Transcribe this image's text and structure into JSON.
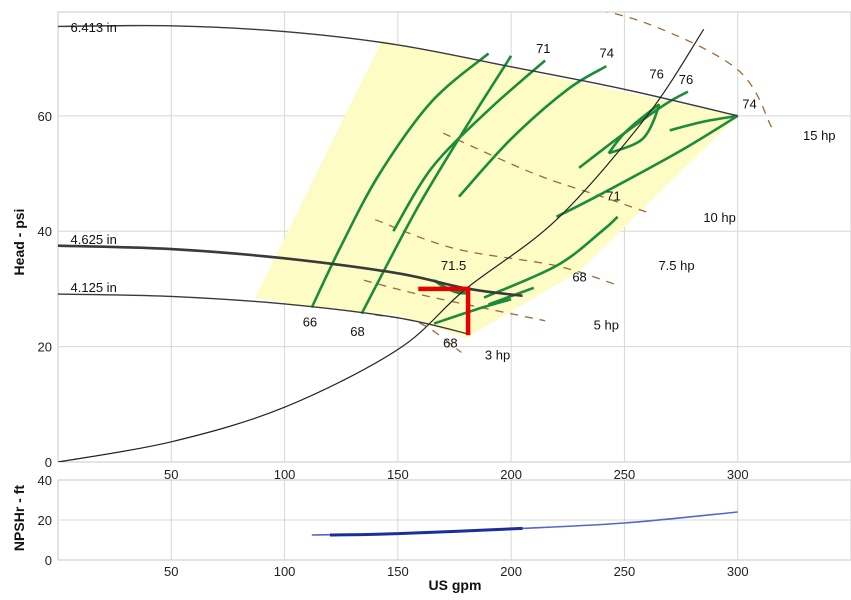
{
  "chart_data": [
    {
      "type": "line",
      "title": "",
      "xlabel": "US gpm",
      "ylabel": "Head - psi",
      "xlim": [
        0,
        350
      ],
      "ylim": [
        0,
        78
      ],
      "x_ticks": [
        50,
        100,
        150,
        200,
        250,
        300
      ],
      "y_ticks": [
        0,
        20,
        40,
        60
      ],
      "grid": true,
      "colors": {
        "operating_region": "#fdfcc4",
        "efficiency": "#1a8c3a",
        "impeller": "#3a3a3a",
        "power": "#9a6a3a",
        "system": "#222222",
        "duty_point": "#e60000"
      },
      "impeller_curves": [
        {
          "label": "6.413 in",
          "label_at": [
            2,
            75.2
          ],
          "points": [
            [
              0,
              75.5
            ],
            [
              50,
              75.6
            ],
            [
              100,
              74.6
            ],
            [
              150,
              72.3
            ],
            [
              200,
              68.5
            ],
            [
              250,
              64.6
            ],
            [
              300,
              60
            ]
          ]
        },
        {
          "label": "4.625 in",
          "label_at": [
            2,
            38.5
          ],
          "points": [
            [
              0,
              37.5
            ],
            [
              50,
              36.9
            ],
            [
              100,
              35.3
            ],
            [
              150,
              32.7
            ],
            [
              180,
              30.1
            ],
            [
              205,
              28.8
            ]
          ]
        },
        {
          "label": "4.125 in",
          "label_at": [
            2,
            30.2
          ],
          "points": [
            [
              0,
              29.1
            ],
            [
              50,
              28.7
            ],
            [
              100,
              27.4
            ],
            [
              150,
              25
            ],
            [
              182,
              22.1
            ]
          ]
        }
      ],
      "system_curve": [
        [
          0,
          0
        ],
        [
          50,
          3.5
        ],
        [
          100,
          9.5
        ],
        [
          150,
          19.5
        ],
        [
          180,
          30
        ],
        [
          220,
          42
        ],
        [
          260,
          60
        ],
        [
          285,
          75
        ]
      ],
      "efficiency_curves": [
        {
          "label": "66",
          "points": [
            [
              112,
              26.8
            ],
            [
              125,
              37.5
            ],
            [
              142,
              50
            ],
            [
              165,
              62.5
            ],
            [
              190,
              70.8
            ]
          ],
          "label_at": [
            108,
            24.2
          ]
        },
        {
          "label": "68",
          "points": [
            [
              134,
              25.7
            ],
            [
              145,
              34
            ],
            [
              160,
              45
            ],
            [
              180,
              58
            ],
            [
              200,
              70.4
            ]
          ],
          "label_at": [
            129,
            22.5
          ]
        },
        {
          "label": "71",
          "points": [
            [
              148,
              40
            ],
            [
              165,
              51
            ],
            [
              190,
              61
            ],
            [
              215,
              69.6
            ]
          ],
          "label_at": [
            211,
            71.6
          ]
        },
        {
          "label": "74",
          "points": [
            [
              177,
              46
            ],
            [
              200,
              56
            ],
            [
              225,
              64.6
            ],
            [
              242,
              68.6
            ]
          ],
          "label_at": [
            239,
            70.8
          ]
        },
        {
          "label": "76",
          "points": [
            [
              230,
              51
            ],
            [
              250,
              57
            ],
            [
              268,
              62
            ],
            [
              278,
              64.2
            ]
          ],
          "label_at": [
            274,
            66.2
          ]
        },
        {
          "label": "76",
          "points": [
            [
              243,
              53.5
            ],
            [
              250,
              57
            ],
            [
              262,
              61
            ],
            [
              265,
              61.5
            ],
            [
              258,
              56
            ],
            [
              243,
              53.5
            ]
          ],
          "label_at": [
            261,
            67.2
          ]
        },
        {
          "label": "71",
          "points": [
            [
              220,
              42.5
            ],
            [
              240,
              46.5
            ],
            [
              275,
              54
            ],
            [
              300,
              60
            ]
          ],
          "label_at": [
            242,
            46
          ]
        },
        {
          "label": "74",
          "points": [
            [
              300,
              60
            ],
            [
              285,
              59
            ],
            [
              270,
              57.5
            ]
          ],
          "label_at": [
            302,
            62
          ]
        },
        {
          "label": "68",
          "points": [
            [
              188,
              28.5
            ],
            [
              220,
              34
            ],
            [
              240,
              40
            ],
            [
              247,
              42.5
            ]
          ],
          "label_at": [
            227,
            32
          ]
        },
        {
          "label": "66",
          "points": [
            [
              190,
              27.3
            ],
            [
              210,
              30.2
            ]
          ],
          "label_at": [
            0,
            0
          ]
        },
        {
          "label": "71.5",
          "points": [
            [
              166,
              31.5
            ],
            [
              175,
              29.5
            ],
            [
              181,
              29.3
            ],
            [
              172,
              30
            ],
            [
              166,
              31.5
            ]
          ],
          "label_at": [
            169,
            34
          ]
        },
        {
          "label": "68",
          "points": [
            [
              166,
              24
            ],
            [
              185,
              26.5
            ],
            [
              200,
              28.2
            ]
          ],
          "label_at": [
            170,
            20.5
          ]
        }
      ],
      "power_curves": [
        {
          "label": "15 hp",
          "points": [
            [
              220,
              80
            ],
            [
              260,
              76
            ],
            [
              300,
              68
            ],
            [
              315,
              58
            ]
          ],
          "label_at": [
            336,
            56.5
          ]
        },
        {
          "label": "10 hp",
          "points": [
            [
              170,
              57
            ],
            [
              210,
              50
            ],
            [
              240,
              46
            ],
            [
              262,
              43
            ]
          ],
          "label_at": [
            292,
            42.3
          ]
        },
        {
          "label": "7.5 hp",
          "points": [
            [
              140,
              42
            ],
            [
              175,
              37
            ],
            [
              220,
              34
            ],
            [
              248,
              30.5
            ]
          ],
          "label_at": [
            273,
            34
          ]
        },
        {
          "label": "5 hp",
          "points": [
            [
              135,
              31.5
            ],
            [
              160,
              29
            ],
            [
              200,
              25.7
            ],
            [
              215,
              24.5
            ]
          ],
          "label_at": [
            242,
            23.7
          ]
        },
        {
          "label": "3 hp",
          "points": [
            [
              140,
              25.5
            ],
            [
              160,
              24
            ],
            [
              178,
              19
            ]
          ],
          "label_at": [
            194,
            18.5
          ]
        }
      ],
      "operating_region": [
        [
          87,
          28.5
        ],
        [
          143,
          73
        ],
        [
          300,
          60
        ],
        [
          230,
          33
        ],
        [
          180,
          21.5
        ],
        [
          150,
          25.5
        ],
        [
          112,
          26.8
        ]
      ],
      "duty_point": {
        "q": 181,
        "h": 30,
        "low_head": 22
      }
    },
    {
      "type": "line",
      "title": "",
      "xlabel": "US gpm",
      "ylabel": "NPSHr - ft",
      "xlim": [
        0,
        350
      ],
      "ylim": [
        0,
        40
      ],
      "x_ticks": [
        50,
        100,
        150,
        200,
        250,
        300
      ],
      "y_ticks": [
        0,
        20,
        40
      ],
      "series": [
        {
          "points": [
            [
              112,
              12.5
            ],
            [
              150,
              13.2
            ],
            [
              200,
              15.5
            ],
            [
              250,
              18.5
            ],
            [
              300,
              24
            ]
          ]
        },
        {
          "points": [
            [
              120,
              12.5
            ],
            [
              150,
              13.2
            ],
            [
              205,
              15.8
            ]
          ]
        }
      ]
    }
  ]
}
